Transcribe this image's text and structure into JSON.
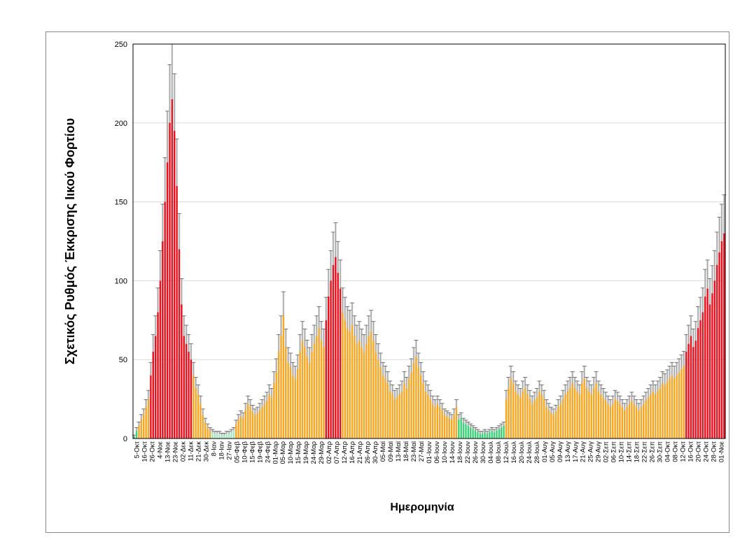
{
  "chart_data": {
    "type": "bar",
    "title": "",
    "xlabel": "Ημερομηνία",
    "ylabel": "Σχετικός Ρυθμός Έκκρισης Ιικού Φορτίου",
    "ylim": [
      0,
      250
    ],
    "yticks": [
      0,
      50,
      100,
      150,
      200,
      250
    ],
    "grid": true,
    "legend": "none",
    "colors": {
      "green": "#3dd17a",
      "light_green": "#a8e6c2",
      "orange": "#f5a623",
      "red": "#e8101c",
      "error_bar": "#9a9a9a",
      "error_fill": "#c8c8c8"
    },
    "tick_labels": [
      "5-Οκτ",
      "16-Οκτ",
      "26-Οκτ",
      "4-Νοε",
      "13-Νοε",
      "23-Νοε",
      "02-Δεκ",
      "11-Δεκ",
      "21-Δεκ",
      "30-Δεκ",
      "8-Ιαν",
      "18-Ιαν",
      "27-Ιαν",
      "05-Φεβ",
      "10-Φεβ",
      "15-Φεβ",
      "19-Φεβ",
      "24-Φεβ",
      "01-Μαρ",
      "05-Μαρ",
      "10-Μαρ",
      "15-Μαρ",
      "19-Μαρ",
      "24-Μαρ",
      "29-Μαρ",
      "02-Απρ",
      "07-Απρ",
      "12-Απρ",
      "16-Απρ",
      "21-Απρ",
      "26-Απρ",
      "30-Απρ",
      "05-Μαϊ",
      "09-Μαϊ",
      "13-Μαϊ",
      "18-Μαϊ",
      "23-Μαϊ",
      "27-Μαϊ",
      "01-Ιουν",
      "06-Ιουν",
      "10-Ιουν",
      "14-Ιουν",
      "18-Ιουν",
      "22-Ιουν",
      "26-Ιουν",
      "30-Ιουν",
      "04-Ιουλ",
      "08-Ιουλ",
      "12-Ιουλ",
      "16-Ιουλ",
      "20-Ιουλ",
      "24-Ιουλ",
      "28-Ιουλ",
      "01-Αυγ",
      "05-Αυγ",
      "09-Αυγ",
      "13-Αυγ",
      "17-Αυγ",
      "21-Αυγ",
      "25-Αυγ",
      "29-Αυγ",
      "02-Σεπ",
      "06-Σεπ",
      "10-Σεπ",
      "14-Σεπ",
      "18-Σεπ",
      "22-Σεπ",
      "26-Σεπ",
      "30-Σεπ",
      "04-Οκτ",
      "08-Οκτ",
      "12-Οκτ",
      "16-Οκτ",
      "20-Οκτ",
      "24-Οκτ",
      "28-Οκτ",
      "01-Νοε"
    ],
    "segments": [
      {
        "color": "green",
        "values": [
          1,
          5
        ]
      },
      {
        "color": "orange",
        "values": [
          8,
          12,
          15,
          20,
          25
        ]
      },
      {
        "color": "red",
        "values": [
          40,
          55,
          65,
          80,
          100,
          125,
          150,
          175,
          200,
          215,
          195,
          160,
          120,
          85,
          65,
          60,
          55,
          50
        ]
      },
      {
        "color": "orange",
        "values": [
          40,
          32,
          28,
          22,
          15,
          10,
          7,
          5
        ]
      },
      {
        "color": "light_green",
        "values": [
          4,
          3,
          3,
          3,
          2,
          2,
          3,
          3,
          4,
          5
        ]
      },
      {
        "color": "orange",
        "values": [
          9,
          12,
          14,
          13,
          18,
          22,
          20,
          17,
          15,
          16,
          18,
          20,
          22,
          24,
          28,
          26,
          35,
          42,
          55,
          65,
          78,
          58,
          48,
          45,
          40,
          38,
          44,
          55,
          62,
          58,
          52,
          48,
          55,
          60,
          65,
          70,
          62,
          58
        ]
      },
      {
        "color": "red",
        "values": [
          75,
          90,
          100,
          110,
          115,
          105,
          95
        ]
      },
      {
        "color": "orange",
        "values": [
          80,
          75,
          70,
          68,
          72,
          65,
          60,
          62,
          58,
          55,
          60,
          65,
          68,
          62,
          55,
          50,
          45,
          40,
          38,
          35,
          30,
          28,
          25,
          26,
          28,
          30,
          35,
          32,
          38,
          42,
          48,
          52,
          45,
          40,
          35,
          30,
          28,
          25,
          22,
          20,
          22,
          20,
          18,
          15,
          14,
          13,
          12,
          15,
          20
        ]
      },
      {
        "color": "green",
        "values": [
          12,
          13,
          10,
          9,
          8,
          7,
          6,
          5,
          4,
          3,
          3,
          4,
          3,
          4,
          5,
          4,
          5,
          6,
          7,
          8
        ]
      },
      {
        "color": "orange",
        "values": [
          25,
          32,
          38,
          35,
          30,
          28,
          26,
          30,
          32,
          28,
          25,
          22,
          24,
          26,
          30,
          28,
          25,
          20,
          18,
          16,
          15,
          17,
          20,
          22,
          25,
          28,
          30,
          32,
          35,
          32,
          30,
          28,
          35,
          38,
          32,
          30,
          28,
          32,
          35,
          30,
          28,
          26,
          24,
          22,
          20,
          22,
          25,
          24,
          22,
          20,
          18,
          20,
          22,
          24,
          22,
          20,
          18,
          20,
          22,
          24,
          26,
          28,
          30,
          28,
          30,
          32,
          35,
          34,
          36,
          38,
          40,
          38,
          40,
          42,
          44,
          46
        ]
      },
      {
        "color": "red",
        "values": [
          55,
          60,
          65,
          58,
          62,
          70,
          75,
          80,
          90,
          95,
          85,
          92,
          100,
          110,
          118,
          125,
          130
        ]
      }
    ]
  }
}
